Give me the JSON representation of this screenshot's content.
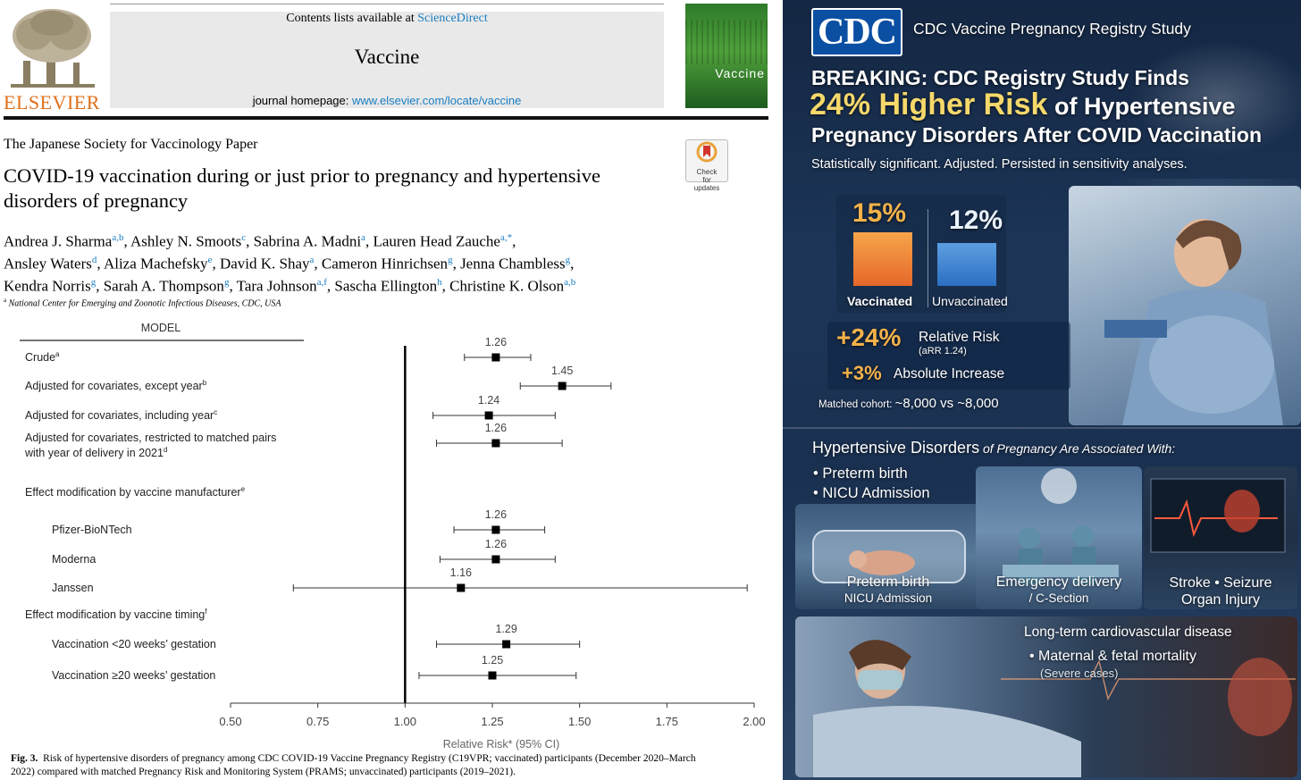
{
  "paper": {
    "contents_prefix": "Contents lists available at ",
    "contents_link": "ScienceDirect",
    "journal_title": "Vaccine",
    "homepage_prefix": "journal homepage: ",
    "homepage_url": "www.elsevier.com/locate/vaccine",
    "publisher": "ELSEVIER",
    "cover_title": "Vaccine",
    "crossmark_label": "Check for updates",
    "society": "The Japanese Society for Vaccinology Paper",
    "title_line1": "COVID-19 vaccination during or just prior to pregnancy and hypertensive",
    "title_line2": "disorders of pregnancy",
    "authors_line1": [
      {
        "name": "Andrea J. Sharma",
        "sup": "a,b",
        "sep": ", "
      },
      {
        "name": "Ashley N. Smoots",
        "sup": "c",
        "sep": ", "
      },
      {
        "name": "Sabrina A. Madni",
        "sup": "a",
        "sep": ", "
      },
      {
        "name": "Lauren Head Zauche",
        "sup": "a,*",
        "sep": ","
      }
    ],
    "authors_line2": [
      {
        "name": "Ansley Waters",
        "sup": "d",
        "sep": ", "
      },
      {
        "name": "Aliza Machefsky",
        "sup": "e",
        "sep": ", "
      },
      {
        "name": "David K. Shay",
        "sup": "a",
        "sep": ", "
      },
      {
        "name": "Cameron Hinrichsen",
        "sup": "g",
        "sep": ", "
      },
      {
        "name": "Jenna Chambless",
        "sup": "g",
        "sep": ","
      }
    ],
    "authors_line3": [
      {
        "name": "Kendra Norris",
        "sup": "g",
        "sep": ", "
      },
      {
        "name": "Sarah A. Thompson",
        "sup": "g",
        "sep": ", "
      },
      {
        "name": "Tara Johnson",
        "sup": "a,f",
        "sep": ", "
      },
      {
        "name": "Sascha Ellington",
        "sup": "h",
        "sep": ", "
      },
      {
        "name": "Christine K. Olson",
        "sup": "a,b",
        "sep": ""
      }
    ],
    "affiliation_sup": "a",
    "affiliation": "National Center for Emerging and Zoonotic Infectious Diseases, CDC, USA",
    "fig_label": "Fig. 3.",
    "caption_line1": "Risk of hypertensive disorders of pregnancy among CDC COVID-19 Vaccine Pregnancy Registry (C19VPR; vaccinated) participants (December 2020–March",
    "caption_line2": "2022) compared with matched Pregnancy Risk and Monitoring System (PRAMS; unvaccinated) participants (2019–2021)."
  },
  "chart_data": {
    "type": "forest",
    "column_header": "MODEL",
    "xlabel": "Relative Risk* (95% CI)",
    "xlim": [
      0.5,
      2.0
    ],
    "xticks": [
      "0.50",
      "0.75",
      "1.00",
      "1.25",
      "1.50",
      "1.75",
      "2.00"
    ],
    "reference_line": 1.0,
    "rows": [
      {
        "label": "Crude",
        "sup": "a",
        "indent": false,
        "rr": 1.26,
        "lo": 1.17,
        "hi": 1.36,
        "value_label": "1.26"
      },
      {
        "label": "Adjusted for covariates, except year",
        "sup": "b",
        "indent": false,
        "rr": 1.45,
        "lo": 1.33,
        "hi": 1.59,
        "value_label": "1.45"
      },
      {
        "label": "Adjusted for covariates, including year",
        "sup": "c",
        "indent": false,
        "rr": 1.24,
        "lo": 1.08,
        "hi": 1.43,
        "value_label": "1.24"
      },
      {
        "label": "Adjusted for covariates, restricted to matched pairs",
        "label2": "with year of delivery in 2021",
        "sup": "d",
        "indent": false,
        "rr": 1.26,
        "lo": 1.09,
        "hi": 1.45,
        "value_label": "1.26"
      },
      {
        "label": "Effect modification by vaccine manufacturer",
        "sup": "e",
        "indent": false,
        "header": true
      },
      {
        "label": "Pfizer-BioNTech",
        "sup": "",
        "indent": true,
        "rr": 1.26,
        "lo": 1.14,
        "hi": 1.4,
        "value_label": "1.26"
      },
      {
        "label": "Moderna",
        "sup": "",
        "indent": true,
        "rr": 1.26,
        "lo": 1.1,
        "hi": 1.43,
        "value_label": "1.26"
      },
      {
        "label": "Janssen",
        "sup": "",
        "indent": true,
        "rr": 1.16,
        "lo": 0.68,
        "hi": 1.98,
        "value_label": "1.16"
      },
      {
        "label": "Effect modification by vaccine timing",
        "sup": "f",
        "indent": false,
        "header": true
      },
      {
        "label": "Vaccination <20 weeks’ gestation",
        "sup": "",
        "indent": true,
        "rr": 1.29,
        "lo": 1.09,
        "hi": 1.5,
        "value_label": "1.29"
      },
      {
        "label": "Vaccination ≥20 weeks’ gestation",
        "sup": "",
        "indent": true,
        "rr": 1.25,
        "lo": 1.04,
        "hi": 1.49,
        "value_label": "1.25"
      }
    ]
  },
  "infographic": {
    "logo": "CDC",
    "header_title": "CDC Vaccine Pregnancy Registry Study",
    "headline1": "BREAKING: CDC Registry Study Finds",
    "headline2_big": "24% Higher Risk",
    "headline2_rest": " of Hypertensive",
    "headline3": "Pregnancy Disorders After COVID Vaccination",
    "subline": "Statistically significant. Adjusted. Persisted in sensitivity analyses.",
    "bar_vacc_value": "15%",
    "bar_vacc_label": "Vaccinated",
    "bar_unvacc_value": "12%",
    "bar_unvacc_label": "Unvaccinated",
    "bar_vacc_pct": 15,
    "bar_unvacc_pct": 12,
    "rr_big": "+24%",
    "rr_label": "Relative Risk",
    "rr_sub": "(aRR 1.24)",
    "abs_big": "+3%",
    "abs_label": "Absolute Increase",
    "cohort_prefix": "Matched cohort: ",
    "cohort_value": "~8,000 vs ~8,000",
    "assoc_bold": "Hypertensive Disorders",
    "assoc_rest": " of Pregnancy Are Associated With:",
    "bullets": [
      "Preterm birth",
      "NICU Admission"
    ],
    "panel1_line1": "Preterm birth",
    "panel1_line2": "NICU Admission",
    "panel2_line1": "Emergency delivery",
    "panel2_line2": "/ C-Section",
    "panel3_line1": "Stroke • Seizure",
    "panel3_line2": "Organ Injury",
    "bottom_title": "Long-term cardiovascular disease",
    "bottom_bullet": "Maternal & fetal mortality",
    "bottom_sub": "(Severe cases)"
  }
}
